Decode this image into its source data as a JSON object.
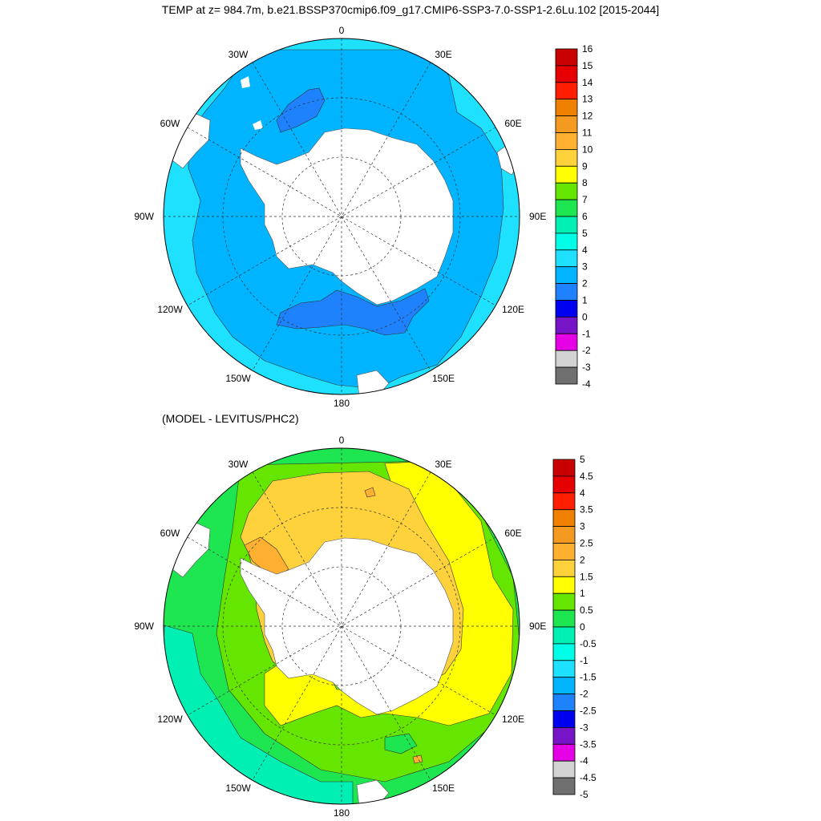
{
  "title": "TEMP at z= 984.7m, b.e21.BSSP370cmip6.f09_g17.CMIP6-SSP3-7.0-SSP1-2.6Lu.102 [2015-2044]",
  "subtitle_lower": "(MODEL - LEVITUS/PHC2)",
  "longitude_labels": {
    "top": "0",
    "bottom": "180",
    "left": "90W",
    "right": "90E",
    "tl30": "30W",
    "tr30": "30E",
    "tl60": "60W",
    "tr60": "60E",
    "bl120": "120W",
    "br120": "120E",
    "bl150": "150W",
    "br150": "150E"
  },
  "colorbar_top": {
    "labels": [
      "16",
      "15",
      "14",
      "13",
      "12",
      "11",
      "10",
      "9",
      "8",
      "7",
      "6",
      "5",
      "4",
      "3",
      "2",
      "1",
      "0",
      "-1",
      "-2",
      "-3",
      "-4"
    ],
    "colors": [
      "#c80000",
      "#e60000",
      "#ff1e00",
      "#f08000",
      "#f59a20",
      "#ffb030",
      "#ffd23c",
      "#ffff00",
      "#64e600",
      "#1ee650",
      "#00f0b4",
      "#00ffe6",
      "#1ee1ff",
      "#00b4ff",
      "#1e82ff",
      "#0000f0",
      "#7814c8",
      "#e600e6",
      "#d2d2d2",
      "#707070"
    ]
  },
  "colorbar_bottom": {
    "labels": [
      "5",
      "4.5",
      "4",
      "3.5",
      "3",
      "2.5",
      "2",
      "1.5",
      "1",
      "0.5",
      "0",
      "-0.5",
      "-1",
      "-1.5",
      "-2",
      "-2.5",
      "-3",
      "-3.5",
      "-4",
      "-4.5",
      "-5"
    ],
    "colors": [
      "#c80000",
      "#e60000",
      "#ff1e00",
      "#f08000",
      "#f59a20",
      "#ffb030",
      "#ffd23c",
      "#ffff00",
      "#64e600",
      "#1ee650",
      "#00f0b4",
      "#00ffe6",
      "#1ee1ff",
      "#00b4ff",
      "#1e82ff",
      "#0000f0",
      "#7814c8",
      "#e600e6",
      "#d2d2d2",
      "#707070"
    ]
  }
}
